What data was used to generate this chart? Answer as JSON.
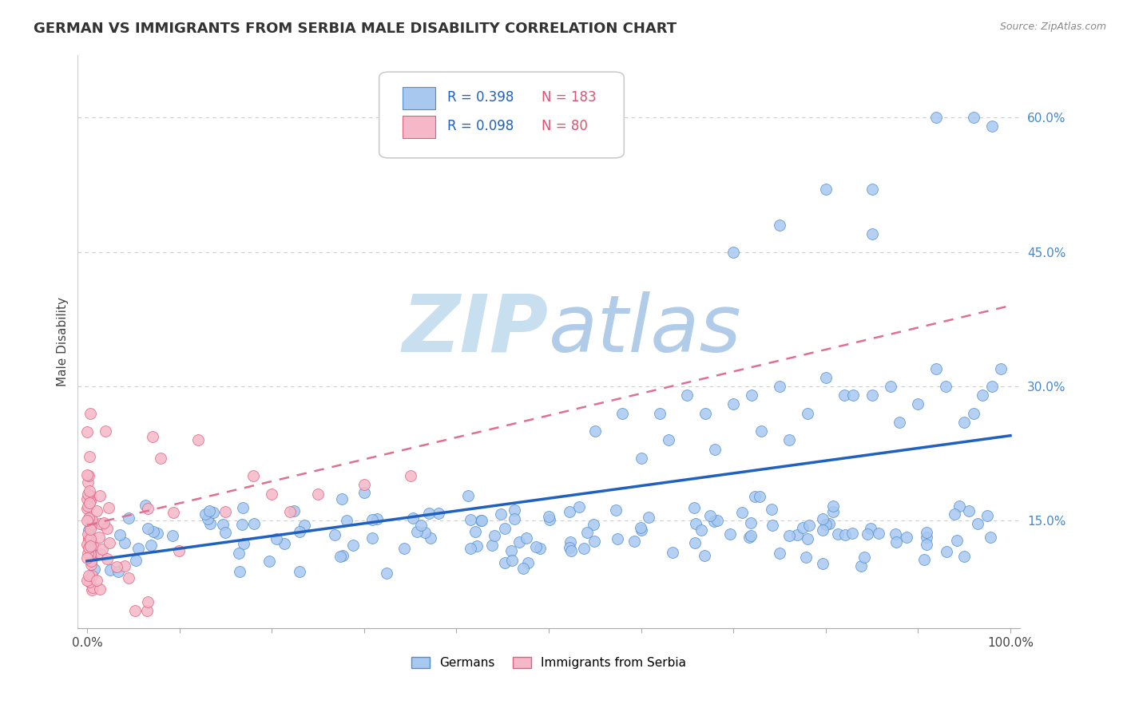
{
  "title": "GERMAN VS IMMIGRANTS FROM SERBIA MALE DISABILITY CORRELATION CHART",
  "source": "Source: ZipAtlas.com",
  "ylabel": "Male Disability",
  "xlim": [
    -0.01,
    1.01
  ],
  "ylim": [
    0.03,
    0.67
  ],
  "ytick_positions": [
    0.15,
    0.3,
    0.45,
    0.6
  ],
  "ytick_labels": [
    "15.0%",
    "30.0%",
    "45.0%",
    "60.0%"
  ],
  "blue_R": 0.398,
  "blue_N": 183,
  "pink_R": 0.098,
  "pink_N": 80,
  "blue_color": "#a8c8f0",
  "pink_color": "#f5b8c8",
  "blue_edge_color": "#5090d0",
  "pink_edge_color": "#e06080",
  "blue_line_color": "#2060c0",
  "pink_line_color": "#e07090",
  "legend_R_color": "#2060c0",
  "legend_N_color": "#e05070",
  "watermark_color": "#c8dff0",
  "background_color": "#ffffff",
  "grid_color": "#cccccc",
  "title_fontsize": 13,
  "axis_label_fontsize": 11,
  "tick_fontsize": 11
}
